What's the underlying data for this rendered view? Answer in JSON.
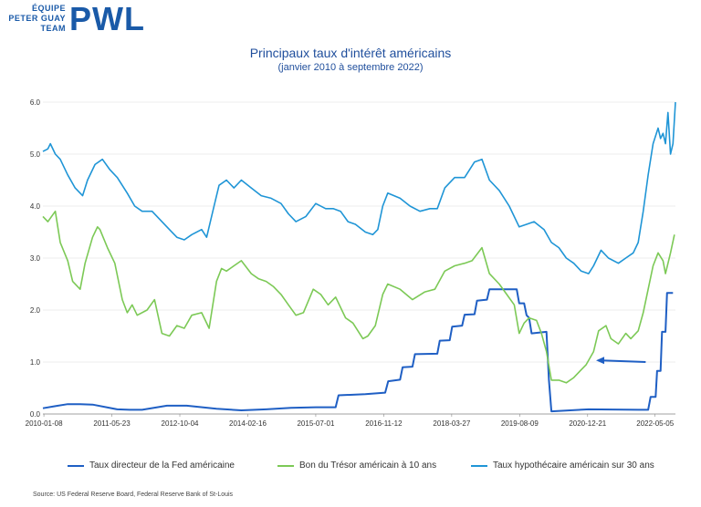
{
  "logo": {
    "line1": "ÉQUIPE",
    "line2": "PETER GUAY",
    "line3": "TEAM",
    "brand": "PWL"
  },
  "source": "Source: US Federal Reserve Board, Federal Reserve Bank of St-Louis",
  "colors": {
    "fed": "#1f5fc4",
    "treasury": "#7cc956",
    "mortgage": "#1f95d6",
    "arrow": "#1f5fc4",
    "grid": "#dcdcdc"
  },
  "chart_data": {
    "type": "line",
    "title": "Principaux taux d'intérêt américains",
    "subtitle": "(janvier 2010 à septembre 2022)",
    "xlabel": "",
    "ylabel": "",
    "ylim": [
      0,
      6
    ],
    "yticks": [
      "0.0",
      "1.0",
      "2.0",
      "3.0",
      "4.0",
      "5.0",
      "6.0"
    ],
    "xlim": [
      2010.0,
      2022.75
    ],
    "xticks": [
      {
        "label": "2010-01-08",
        "x": 2010.02
      },
      {
        "label": "2011-05-23",
        "x": 2011.39
      },
      {
        "label": "2012-10-04",
        "x": 2012.76
      },
      {
        "label": "2014-02-16",
        "x": 2014.13
      },
      {
        "label": "2015-07-01",
        "x": 2015.5
      },
      {
        "label": "2016-11-12",
        "x": 2016.87
      },
      {
        "label": "2018-03-27",
        "x": 2018.24
      },
      {
        "label": "2019-08-09",
        "x": 2019.61
      },
      {
        "label": "2020-12-21",
        "x": 2020.98
      },
      {
        "label": "2022-05-05",
        "x": 2022.34
      }
    ],
    "grid": true,
    "legend_position": "bottom",
    "annotation": {
      "type": "arrow",
      "from": [
        2022.15,
        1.0
      ],
      "to": [
        2021.15,
        1.03
      ]
    },
    "series": [
      {
        "name": "Taux directeur de la Fed américaine",
        "color": "#1f5fc4",
        "x": [
          2010.0,
          2010.25,
          2010.5,
          2010.75,
          2011.0,
          2011.5,
          2011.75,
          2012.0,
          2012.5,
          2012.9,
          2013.5,
          2014.0,
          2014.5,
          2015.0,
          2015.5,
          2015.9,
          2015.96,
          2016.5,
          2016.9,
          2016.96,
          2017.2,
          2017.25,
          2017.45,
          2017.5,
          2017.95,
          2018.0,
          2018.2,
          2018.25,
          2018.45,
          2018.5,
          2018.7,
          2018.75,
          2018.95,
          2019.0,
          2019.55,
          2019.6,
          2019.7,
          2019.75,
          2019.8,
          2019.85,
          2020.15,
          2020.2,
          2020.25,
          2021.0,
          2022.0,
          2022.2,
          2022.25,
          2022.35,
          2022.38,
          2022.45,
          2022.48,
          2022.55,
          2022.58,
          2022.7
        ],
        "y": [
          0.11,
          0.15,
          0.19,
          0.19,
          0.18,
          0.09,
          0.08,
          0.08,
          0.16,
          0.16,
          0.1,
          0.07,
          0.09,
          0.12,
          0.13,
          0.13,
          0.36,
          0.38,
          0.41,
          0.63,
          0.66,
          0.9,
          0.91,
          1.15,
          1.16,
          1.41,
          1.42,
          1.68,
          1.7,
          1.91,
          1.92,
          2.18,
          2.2,
          2.4,
          2.4,
          2.13,
          2.13,
          1.9,
          1.85,
          1.55,
          1.58,
          0.65,
          0.05,
          0.09,
          0.08,
          0.08,
          0.33,
          0.33,
          0.83,
          0.83,
          1.58,
          1.58,
          2.33,
          2.33
        ]
      },
      {
        "name": "Bon du Trésor américain à 10 ans",
        "color": "#7cc956",
        "x": [
          2010.0,
          2010.1,
          2010.25,
          2010.35,
          2010.5,
          2010.6,
          2010.75,
          2010.85,
          2011.0,
          2011.1,
          2011.15,
          2011.3,
          2011.45,
          2011.6,
          2011.7,
          2011.8,
          2011.9,
          2012.1,
          2012.25,
          2012.4,
          2012.55,
          2012.7,
          2012.85,
          2013.0,
          2013.2,
          2013.35,
          2013.5,
          2013.6,
          2013.7,
          2013.85,
          2014.0,
          2014.2,
          2014.35,
          2014.5,
          2014.65,
          2014.8,
          2014.95,
          2015.1,
          2015.25,
          2015.45,
          2015.6,
          2015.75,
          2015.9,
          2016.1,
          2016.25,
          2016.45,
          2016.55,
          2016.7,
          2016.85,
          2016.95,
          2017.2,
          2017.45,
          2017.7,
          2017.9,
          2018.1,
          2018.3,
          2018.5,
          2018.65,
          2018.85,
          2019.0,
          2019.2,
          2019.35,
          2019.5,
          2019.6,
          2019.7,
          2019.8,
          2019.95,
          2020.05,
          2020.15,
          2020.25,
          2020.4,
          2020.55,
          2020.7,
          2020.85,
          2020.95,
          2021.1,
          2021.2,
          2021.35,
          2021.45,
          2021.6,
          2021.75,
          2021.85,
          2022.0,
          2022.1,
          2022.2,
          2022.3,
          2022.4,
          2022.5,
          2022.55,
          2022.65,
          2022.73
        ],
        "y": [
          3.8,
          3.7,
          3.9,
          3.3,
          2.95,
          2.55,
          2.4,
          2.9,
          3.4,
          3.6,
          3.55,
          3.2,
          2.9,
          2.2,
          1.95,
          2.1,
          1.9,
          2.0,
          2.2,
          1.55,
          1.5,
          1.7,
          1.65,
          1.9,
          1.95,
          1.65,
          2.55,
          2.8,
          2.75,
          2.85,
          2.95,
          2.7,
          2.6,
          2.55,
          2.45,
          2.3,
          2.1,
          1.9,
          1.95,
          2.4,
          2.3,
          2.1,
          2.25,
          1.85,
          1.75,
          1.45,
          1.5,
          1.7,
          2.3,
          2.5,
          2.4,
          2.2,
          2.35,
          2.4,
          2.75,
          2.85,
          2.9,
          2.95,
          3.2,
          2.7,
          2.5,
          2.3,
          2.1,
          1.55,
          1.75,
          1.85,
          1.8,
          1.55,
          1.2,
          0.65,
          0.65,
          0.6,
          0.7,
          0.85,
          0.95,
          1.2,
          1.6,
          1.7,
          1.45,
          1.35,
          1.55,
          1.45,
          1.6,
          1.95,
          2.4,
          2.85,
          3.1,
          2.95,
          2.7,
          3.1,
          3.45
        ]
      },
      {
        "name": "Taux hypothécaire américain sur 30 ans",
        "color": "#1f95d6",
        "x": [
          2010.0,
          2010.1,
          2010.15,
          2010.25,
          2010.35,
          2010.5,
          2010.65,
          2010.8,
          2010.9,
          2011.05,
          2011.2,
          2011.35,
          2011.5,
          2011.7,
          2011.85,
          2012.0,
          2012.2,
          2012.4,
          2012.55,
          2012.7,
          2012.85,
          2013.0,
          2013.2,
          2013.3,
          2013.45,
          2013.55,
          2013.7,
          2013.85,
          2014.0,
          2014.2,
          2014.4,
          2014.6,
          2014.8,
          2014.95,
          2015.1,
          2015.3,
          2015.5,
          2015.7,
          2015.85,
          2016.0,
          2016.15,
          2016.3,
          2016.5,
          2016.65,
          2016.75,
          2016.85,
          2016.95,
          2017.2,
          2017.4,
          2017.6,
          2017.8,
          2017.95,
          2018.1,
          2018.3,
          2018.5,
          2018.7,
          2018.85,
          2019.0,
          2019.2,
          2019.4,
          2019.6,
          2019.75,
          2019.9,
          2020.1,
          2020.25,
          2020.4,
          2020.55,
          2020.7,
          2020.85,
          2021.0,
          2021.1,
          2021.25,
          2021.4,
          2021.6,
          2021.75,
          2021.9,
          2022.0,
          2022.1,
          2022.2,
          2022.3,
          2022.4,
          2022.45,
          2022.5,
          2022.55,
          2022.6,
          2022.65,
          2022.7,
          2022.75
        ],
        "y": [
          5.05,
          5.1,
          5.2,
          5.0,
          4.9,
          4.6,
          4.35,
          4.2,
          4.5,
          4.8,
          4.9,
          4.7,
          4.55,
          4.25,
          4.0,
          3.9,
          3.9,
          3.7,
          3.55,
          3.4,
          3.35,
          3.45,
          3.55,
          3.4,
          4.0,
          4.4,
          4.5,
          4.35,
          4.5,
          4.35,
          4.2,
          4.15,
          4.05,
          3.85,
          3.7,
          3.8,
          4.05,
          3.95,
          3.95,
          3.9,
          3.7,
          3.65,
          3.5,
          3.45,
          3.55,
          4.0,
          4.25,
          4.15,
          4.0,
          3.9,
          3.95,
          3.95,
          4.35,
          4.55,
          4.55,
          4.85,
          4.9,
          4.5,
          4.3,
          4.0,
          3.6,
          3.65,
          3.7,
          3.55,
          3.3,
          3.2,
          3.0,
          2.9,
          2.75,
          2.7,
          2.85,
          3.15,
          3.0,
          2.9,
          3.0,
          3.1,
          3.3,
          3.9,
          4.6,
          5.2,
          5.5,
          5.3,
          5.4,
          5.2,
          5.8,
          5.0,
          5.2,
          6.0
        ]
      }
    ]
  }
}
